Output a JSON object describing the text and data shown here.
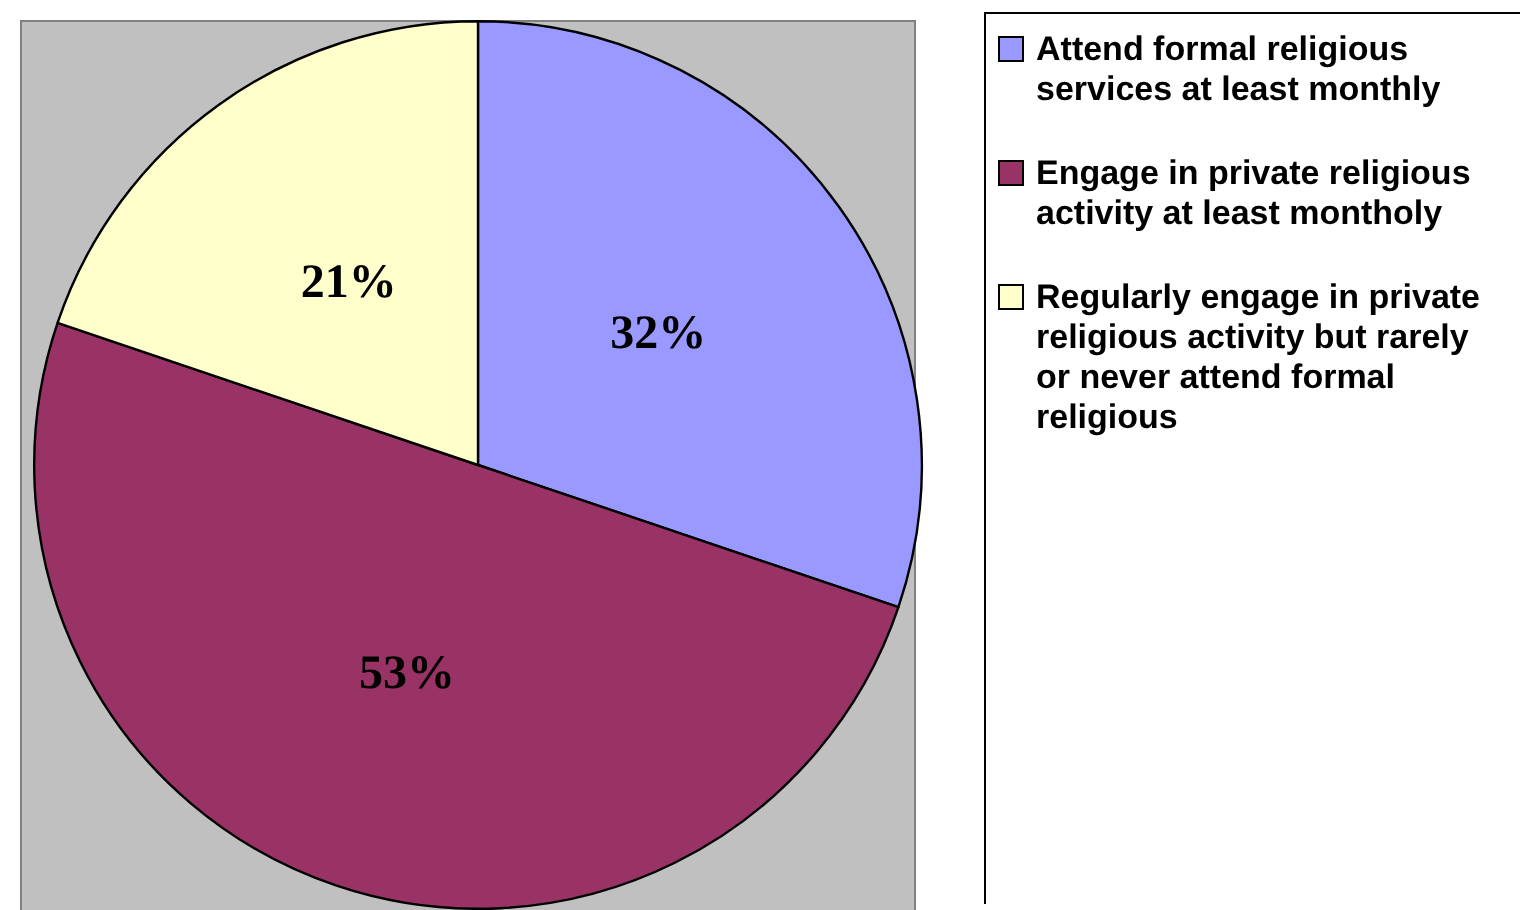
{
  "chart_data": {
    "type": "pie",
    "categories": [
      "Attend formal religious services at least monthly",
      "Engage in private religious activity at least montholy",
      "Regularly engage in private religious activity but rarely or never attend formal religious"
    ],
    "values": [
      32,
      53,
      21
    ],
    "colors": [
      "#9999ff",
      "#993366",
      "#ffffcc"
    ],
    "value_labels": [
      "32%",
      "53%",
      "21%"
    ],
    "legend": "right"
  }
}
